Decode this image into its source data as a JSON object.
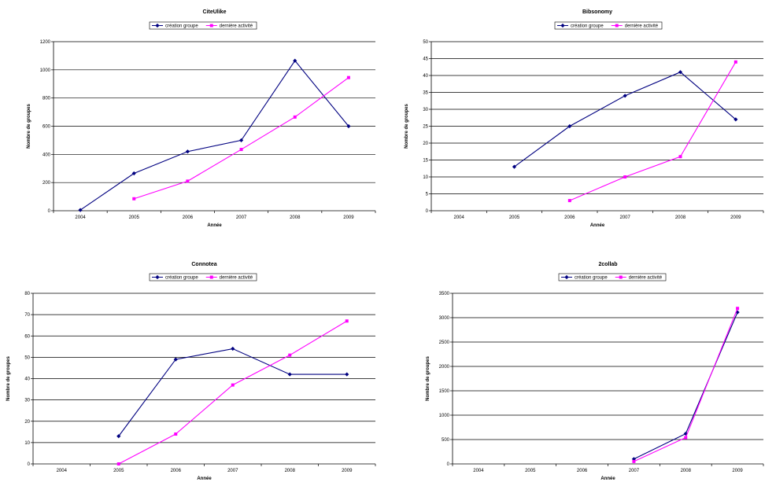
{
  "colors": {
    "series_1": "#000080",
    "series_2": "#ff00ff",
    "grid": "#000000",
    "background": "#ffffff"
  },
  "chart_data": [
    {
      "type": "line",
      "title": "CiteUlike",
      "xlabel": "Année",
      "ylabel": "Nombre de groupes",
      "categories": [
        "2004",
        "2005",
        "2006",
        "2007",
        "2008",
        "2009"
      ],
      "ylim": [
        0,
        1200
      ],
      "yticks": [
        0,
        200,
        400,
        600,
        800,
        1000,
        1200
      ],
      "grid": true,
      "legend_position": "top",
      "series": [
        {
          "name": "création groupe",
          "marker": "diamond",
          "values": [
            5,
            265,
            420,
            500,
            1065,
            600
          ]
        },
        {
          "name": "dernière activité",
          "marker": "square",
          "values": [
            null,
            85,
            210,
            435,
            665,
            945
          ]
        }
      ]
    },
    {
      "type": "line",
      "title": "Bibsonomy",
      "xlabel": "Année",
      "ylabel": "Nombre de groupes",
      "categories": [
        "2004",
        "2005",
        "2006",
        "2007",
        "2008",
        "2009"
      ],
      "ylim": [
        0,
        50
      ],
      "yticks": [
        0,
        5,
        10,
        15,
        20,
        25,
        30,
        35,
        40,
        45,
        50
      ],
      "grid": true,
      "legend_position": "top",
      "series": [
        {
          "name": "création groupe",
          "marker": "diamond",
          "values": [
            null,
            13,
            25,
            34,
            41,
            27
          ]
        },
        {
          "name": "dernière activité",
          "marker": "square",
          "values": [
            null,
            null,
            3,
            10,
            16,
            44
          ]
        }
      ]
    },
    {
      "type": "line",
      "title": "Connotea",
      "xlabel": "Année",
      "ylabel": "Nombre de groupes",
      "categories": [
        "2004",
        "2005",
        "2006",
        "2007",
        "2008",
        "2009"
      ],
      "ylim": [
        0,
        80
      ],
      "yticks": [
        0,
        10,
        20,
        30,
        40,
        50,
        60,
        70,
        80
      ],
      "grid": true,
      "legend_position": "top",
      "series": [
        {
          "name": "création groupe",
          "marker": "diamond",
          "values": [
            null,
            13,
            49,
            54,
            42,
            42
          ]
        },
        {
          "name": "dernière activité",
          "marker": "square",
          "values": [
            null,
            0,
            14,
            37,
            51,
            67
          ]
        }
      ]
    },
    {
      "type": "line",
      "title": "2collab",
      "xlabel": "Année",
      "ylabel": "Nombre de groupes",
      "categories": [
        "2004",
        "2005",
        "2006",
        "2007",
        "2008",
        "2009"
      ],
      "ylim": [
        0,
        3500
      ],
      "yticks": [
        0,
        500,
        1000,
        1500,
        2000,
        2500,
        3000,
        3500
      ],
      "grid": true,
      "legend_position": "top",
      "series": [
        {
          "name": "création groupe",
          "marker": "diamond",
          "values": [
            null,
            null,
            null,
            100,
            620,
            3110
          ]
        },
        {
          "name": "dernière activité",
          "marker": "square",
          "values": [
            null,
            null,
            null,
            50,
            540,
            3190
          ]
        }
      ]
    }
  ]
}
